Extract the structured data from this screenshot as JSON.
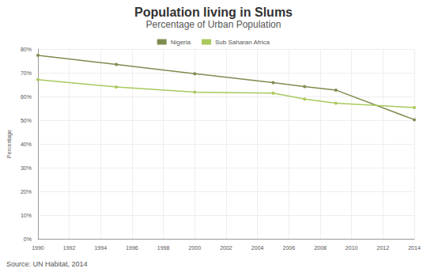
{
  "chart_data": {
    "type": "line",
    "title": "Population living in Slums",
    "subtitle": "Percentage of Urban Population",
    "y_label": "Percentage",
    "annotations": [
      "Source: UN Habitat, 2014"
    ],
    "x": [
      1990,
      1995,
      2000,
      2005,
      2007,
      2009,
      2014
    ],
    "series": [
      {
        "name": "Nigeria",
        "color": "#7d8c4f",
        "values": [
          77.3,
          73.5,
          69.6,
          65.8,
          64.2,
          62.7,
          50.2
        ]
      },
      {
        "name": "Sub Saharan Africa",
        "color": "#a9c95d",
        "values": [
          67.1,
          64.0,
          61.8,
          61.4,
          58.9,
          57.2,
          55.3
        ]
      }
    ],
    "xlim": [
      1990,
      2014
    ],
    "xticks": [
      1990,
      1992,
      1994,
      1996,
      1998,
      2000,
      2002,
      2004,
      2006,
      2008,
      2010,
      2012,
      2014
    ],
    "ylim": [
      0,
      80
    ],
    "yticks": [
      {
        "value": 0,
        "label": "0%"
      },
      {
        "value": 10,
        "label": "10%"
      },
      {
        "value": 20,
        "label": "20%"
      },
      {
        "value": 30,
        "label": "30%"
      },
      {
        "value": 40,
        "label": "40%"
      },
      {
        "value": 50,
        "label": "50%"
      },
      {
        "value": 60,
        "label": "60%"
      },
      {
        "value": 70,
        "label": "70%"
      },
      {
        "value": 80,
        "label": "80%"
      }
    ],
    "grid": true,
    "legend": "top",
    "marker": "circle"
  }
}
